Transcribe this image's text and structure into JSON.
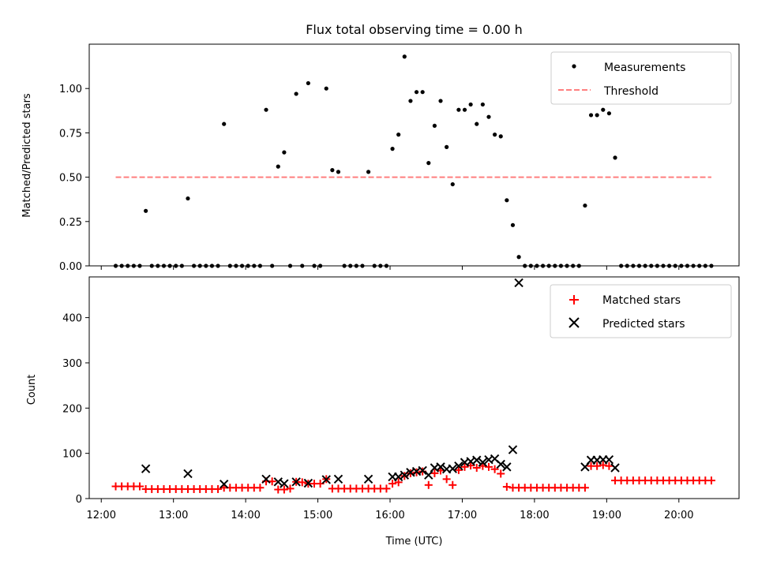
{
  "figure": {
    "title": "Flux total observing time = 0.00 h",
    "xlabel": "Time (UTC)"
  },
  "chart_data": [
    {
      "type": "scatter",
      "panel": "top",
      "title": "Flux total observing time = 0.00 h",
      "xlabel": "",
      "ylabel": "Matched/Predicted stars",
      "xlim": [
        "11:50",
        "20:50"
      ],
      "ylim": [
        0,
        1.25
      ],
      "x_ticks": [
        "12:00",
        "13:00",
        "14:00",
        "15:00",
        "16:00",
        "17:00",
        "18:00",
        "19:00",
        "20:00"
      ],
      "y_ticks": [
        "0.00",
        "0.25",
        "0.50",
        "0.75",
        "1.00"
      ],
      "y_tick_values": [
        0,
        0.25,
        0.5,
        0.75,
        1.0
      ],
      "legend_position": "top-right",
      "series": [
        {
          "name": "Measurements",
          "kind": "scatter",
          "color": "#000000",
          "points": [
            [
              "12:12",
              0
            ],
            [
              "12:17",
              0
            ],
            [
              "12:22",
              0
            ],
            [
              "12:27",
              0
            ],
            [
              "12:32",
              0
            ],
            [
              "12:37",
              0.31
            ],
            [
              "12:42",
              0
            ],
            [
              "12:47",
              0
            ],
            [
              "12:52",
              0
            ],
            [
              "12:57",
              0
            ],
            [
              "13:02",
              0
            ],
            [
              "13:07",
              0
            ],
            [
              "13:12",
              0.38
            ],
            [
              "13:17",
              0
            ],
            [
              "13:22",
              0
            ],
            [
              "13:27",
              0
            ],
            [
              "13:32",
              0
            ],
            [
              "13:37",
              0
            ],
            [
              "13:42",
              0.8
            ],
            [
              "13:47",
              0
            ],
            [
              "13:52",
              0
            ],
            [
              "13:57",
              0
            ],
            [
              "14:02",
              0
            ],
            [
              "14:07",
              0
            ],
            [
              "14:12",
              0
            ],
            [
              "14:17",
              0.88
            ],
            [
              "14:22",
              0
            ],
            [
              "14:27",
              0.56
            ],
            [
              "14:32",
              0.64
            ],
            [
              "14:37",
              0
            ],
            [
              "14:42",
              0.97
            ],
            [
              "14:47",
              0
            ],
            [
              "14:52",
              1.03
            ],
            [
              "14:57",
              0
            ],
            [
              "15:02",
              0
            ],
            [
              "15:07",
              1.0
            ],
            [
              "15:12",
              0.54
            ],
            [
              "15:17",
              0.53
            ],
            [
              "15:22",
              0
            ],
            [
              "15:27",
              0
            ],
            [
              "15:32",
              0
            ],
            [
              "15:37",
              0
            ],
            [
              "15:42",
              0.53
            ],
            [
              "15:47",
              0
            ],
            [
              "15:52",
              0
            ],
            [
              "15:57",
              0
            ],
            [
              "16:02",
              0.66
            ],
            [
              "16:07",
              0.74
            ],
            [
              "16:12",
              1.18
            ],
            [
              "16:17",
              0.93
            ],
            [
              "16:22",
              0.98
            ],
            [
              "16:27",
              0.98
            ],
            [
              "16:32",
              0.58
            ],
            [
              "16:37",
              0.79
            ],
            [
              "16:42",
              0.93
            ],
            [
              "16:47",
              0.67
            ],
            [
              "16:52",
              0.46
            ],
            [
              "16:57",
              0.88
            ],
            [
              "17:02",
              0.88
            ],
            [
              "17:07",
              0.91
            ],
            [
              "17:12",
              0.8
            ],
            [
              "17:17",
              0.91
            ],
            [
              "17:22",
              0.84
            ],
            [
              "17:27",
              0.74
            ],
            [
              "17:32",
              0.73
            ],
            [
              "17:37",
              0.37
            ],
            [
              "17:42",
              0.23
            ],
            [
              "17:47",
              0.05
            ],
            [
              "17:52",
              0
            ],
            [
              "17:57",
              0
            ],
            [
              "18:02",
              0
            ],
            [
              "18:07",
              0
            ],
            [
              "18:12",
              0
            ],
            [
              "18:17",
              0
            ],
            [
              "18:22",
              0
            ],
            [
              "18:27",
              0
            ],
            [
              "18:32",
              0
            ],
            [
              "18:37",
              0
            ],
            [
              "18:42",
              0.34
            ],
            [
              "18:47",
              0.85
            ],
            [
              "18:52",
              0.85
            ],
            [
              "18:57",
              0.88
            ],
            [
              "19:02",
              0.86
            ],
            [
              "19:07",
              0.61
            ],
            [
              "19:12",
              0
            ],
            [
              "19:17",
              0
            ],
            [
              "19:22",
              0
            ],
            [
              "19:27",
              0
            ],
            [
              "19:32",
              0
            ],
            [
              "19:37",
              0
            ],
            [
              "19:42",
              0
            ],
            [
              "19:47",
              0
            ],
            [
              "19:52",
              0
            ],
            [
              "19:57",
              0
            ],
            [
              "20:02",
              0
            ],
            [
              "20:07",
              0
            ],
            [
              "20:12",
              0
            ],
            [
              "20:17",
              0
            ],
            [
              "20:22",
              0
            ],
            [
              "20:27",
              0
            ]
          ]
        },
        {
          "name": "Threshold",
          "kind": "dashed-line",
          "color": "#ff7f7f",
          "points": [
            [
              "12:12",
              0.5
            ],
            [
              "20:27",
              0.5
            ]
          ]
        }
      ]
    },
    {
      "type": "scatter",
      "panel": "bottom",
      "xlabel": "Time (UTC)",
      "ylabel": "Count",
      "xlim": [
        "11:50",
        "20:50"
      ],
      "ylim": [
        0,
        490
      ],
      "x_ticks": [
        "12:00",
        "13:00",
        "14:00",
        "15:00",
        "16:00",
        "17:00",
        "18:00",
        "19:00",
        "20:00"
      ],
      "y_ticks": [
        "0",
        "100",
        "200",
        "300",
        "400"
      ],
      "y_tick_values": [
        0,
        100,
        200,
        300,
        400
      ],
      "legend_position": "top-right",
      "series": [
        {
          "name": "Matched stars",
          "marker": "+",
          "color": "#ff0000",
          "points": [
            [
              "12:12",
              27
            ],
            [
              "12:17",
              27
            ],
            [
              "12:22",
              27
            ],
            [
              "12:27",
              27
            ],
            [
              "12:32",
              27
            ],
            [
              "12:37",
              21
            ],
            [
              "12:42",
              21
            ],
            [
              "12:47",
              21
            ],
            [
              "12:52",
              21
            ],
            [
              "12:57",
              21
            ],
            [
              "13:02",
              21
            ],
            [
              "13:07",
              21
            ],
            [
              "13:12",
              21
            ],
            [
              "13:17",
              21
            ],
            [
              "13:22",
              21
            ],
            [
              "13:27",
              21
            ],
            [
              "13:32",
              21
            ],
            [
              "13:37",
              21
            ],
            [
              "13:42",
              24
            ],
            [
              "13:47",
              24
            ],
            [
              "13:52",
              24
            ],
            [
              "13:57",
              24
            ],
            [
              "14:02",
              24
            ],
            [
              "14:07",
              24
            ],
            [
              "14:12",
              24
            ],
            [
              "14:17",
              38
            ],
            [
              "14:22",
              38
            ],
            [
              "14:27",
              20
            ],
            [
              "14:32",
              20
            ],
            [
              "14:37",
              22
            ],
            [
              "14:42",
              37
            ],
            [
              "14:47",
              36
            ],
            [
              "14:52",
              33
            ],
            [
              "14:57",
              33
            ],
            [
              "15:02",
              33
            ],
            [
              "15:07",
              43
            ],
            [
              "15:12",
              22
            ],
            [
              "15:17",
              22
            ],
            [
              "15:22",
              22
            ],
            [
              "15:27",
              22
            ],
            [
              "15:32",
              22
            ],
            [
              "15:37",
              22
            ],
            [
              "15:42",
              22
            ],
            [
              "15:47",
              22
            ],
            [
              "15:52",
              22
            ],
            [
              "15:57",
              22
            ],
            [
              "16:02",
              33
            ],
            [
              "16:07",
              36
            ],
            [
              "16:12",
              50
            ],
            [
              "16:17",
              56
            ],
            [
              "16:22",
              58
            ],
            [
              "16:27",
              60
            ],
            [
              "16:32",
              30
            ],
            [
              "16:37",
              56
            ],
            [
              "16:42",
              62
            ],
            [
              "16:47",
              43
            ],
            [
              "16:52",
              30
            ],
            [
              "16:57",
              63
            ],
            [
              "17:02",
              70
            ],
            [
              "17:07",
              73
            ],
            [
              "17:12",
              68
            ],
            [
              "17:17",
              72
            ],
            [
              "17:22",
              70
            ],
            [
              "17:27",
              65
            ],
            [
              "17:32",
              55
            ],
            [
              "17:37",
              26
            ],
            [
              "17:42",
              24
            ],
            [
              "17:47",
              24
            ],
            [
              "17:52",
              24
            ],
            [
              "17:57",
              24
            ],
            [
              "18:02",
              24
            ],
            [
              "18:07",
              24
            ],
            [
              "18:12",
              24
            ],
            [
              "18:17",
              24
            ],
            [
              "18:22",
              24
            ],
            [
              "18:27",
              24
            ],
            [
              "18:32",
              24
            ],
            [
              "18:37",
              24
            ],
            [
              "18:42",
              24
            ],
            [
              "18:47",
              72
            ],
            [
              "18:52",
              72
            ],
            [
              "18:57",
              74
            ],
            [
              "19:02",
              72
            ],
            [
              "19:07",
              40
            ],
            [
              "19:12",
              40
            ],
            [
              "19:17",
              40
            ],
            [
              "19:22",
              40
            ],
            [
              "19:27",
              40
            ],
            [
              "19:32",
              40
            ],
            [
              "19:37",
              40
            ],
            [
              "19:42",
              40
            ],
            [
              "19:47",
              40
            ],
            [
              "19:52",
              40
            ],
            [
              "19:57",
              40
            ],
            [
              "20:02",
              40
            ],
            [
              "20:07",
              40
            ],
            [
              "20:12",
              40
            ],
            [
              "20:17",
              40
            ],
            [
              "20:22",
              40
            ],
            [
              "20:27",
              40
            ]
          ]
        },
        {
          "name": "Predicted stars",
          "marker": "x",
          "color": "#000000",
          "points": [
            [
              "12:37",
              66
            ],
            [
              "13:12",
              55
            ],
            [
              "13:42",
              32
            ],
            [
              "14:17",
              43
            ],
            [
              "14:27",
              37
            ],
            [
              "14:32",
              33
            ],
            [
              "14:42",
              37
            ],
            [
              "14:52",
              34
            ],
            [
              "15:07",
              42
            ],
            [
              "15:17",
              43
            ],
            [
              "15:42",
              43
            ],
            [
              "16:02",
              48
            ],
            [
              "16:07",
              48
            ],
            [
              "16:12",
              52
            ],
            [
              "16:17",
              58
            ],
            [
              "16:22",
              60
            ],
            [
              "16:27",
              62
            ],
            [
              "16:32",
              52
            ],
            [
              "16:37",
              68
            ],
            [
              "16:42",
              70
            ],
            [
              "16:47",
              65
            ],
            [
              "16:52",
              66
            ],
            [
              "16:57",
              72
            ],
            [
              "17:02",
              80
            ],
            [
              "17:07",
              82
            ],
            [
              "17:12",
              85
            ],
            [
              "17:17",
              80
            ],
            [
              "17:22",
              86
            ],
            [
              "17:27",
              88
            ],
            [
              "17:32",
              76
            ],
            [
              "17:37",
              70
            ],
            [
              "17:42",
              108
            ],
            [
              "17:47",
              477
            ],
            [
              "18:42",
              70
            ],
            [
              "18:47",
              85
            ],
            [
              "18:52",
              85
            ],
            [
              "18:57",
              86
            ],
            [
              "19:02",
              86
            ],
            [
              "19:07",
              68
            ]
          ]
        }
      ]
    }
  ]
}
